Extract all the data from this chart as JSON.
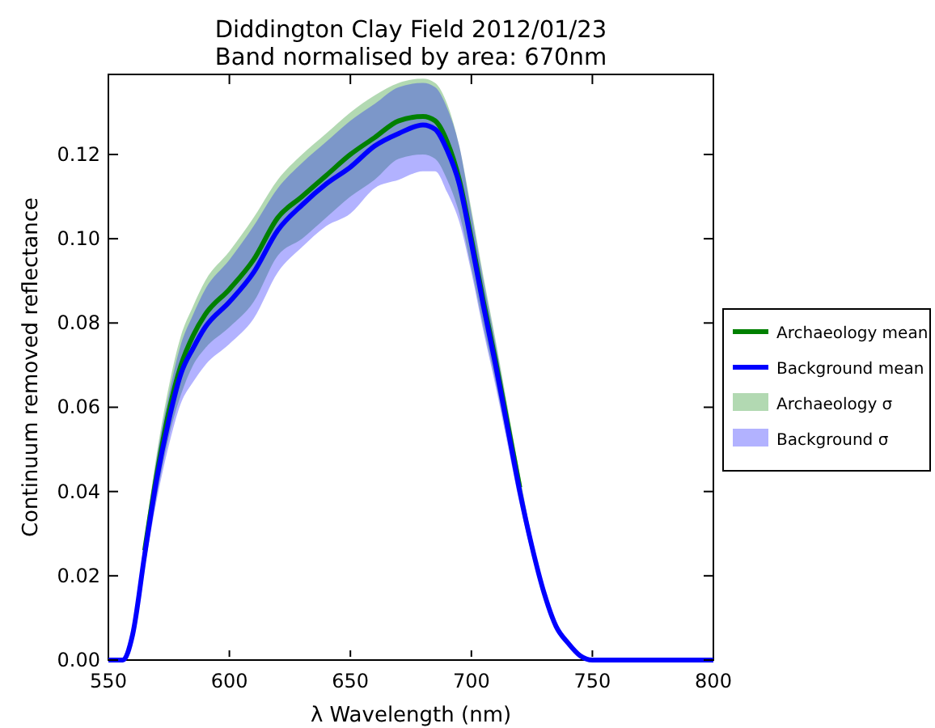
{
  "chart_data": {
    "type": "line",
    "title": "Diddington Clay Field 2012/01/23",
    "subtitle": "Band normalised by area: 670nm",
    "xlabel": "λ Wavelength (nm)",
    "ylabel": "Continuum removed reflectance",
    "x": [
      550,
      556,
      560,
      565,
      570,
      575,
      580,
      585,
      590,
      600,
      610,
      620,
      630,
      640,
      650,
      660,
      670,
      680,
      685,
      690,
      695,
      700,
      705,
      710,
      715,
      720,
      725,
      730,
      735,
      740,
      745,
      750,
      800
    ],
    "xlim": [
      550,
      800
    ],
    "xticks": [
      550,
      600,
      650,
      700,
      750,
      800
    ],
    "ylim": [
      0,
      0.139
    ],
    "yticks": [
      {
        "value": 0,
        "label": "0.00"
      },
      {
        "value": 0.02,
        "label": "0.02"
      },
      {
        "value": 0.04,
        "label": "0.04"
      },
      {
        "value": 0.06,
        "label": "0.06"
      },
      {
        "value": 0.08,
        "label": "0.08"
      },
      {
        "value": 0.1,
        "label": "0.10"
      },
      {
        "value": 0.12,
        "label": "0.12"
      }
    ],
    "legend": "right",
    "annotations": [
      "Archaeology σ",
      "Background σ"
    ],
    "series": [
      {
        "name": "Archaeology mean",
        "color": "#008000",
        "values": [
          0,
          0,
          null,
          0.026,
          0.044,
          0.059,
          0.07,
          0.077,
          0.082,
          0.088,
          0.095,
          0.105,
          0.11,
          0.115,
          0.12,
          0.124,
          0.128,
          0.129,
          0.128,
          0.123,
          0.114,
          0.1,
          0.085,
          0.071,
          0.056,
          0.041,
          null,
          null,
          null,
          null,
          null,
          null,
          null
        ],
        "lower": [
          0,
          0,
          0.005,
          0.023,
          0.039,
          0.053,
          0.063,
          0.07,
          0.074,
          0.079,
          0.085,
          0.096,
          0.1,
          0.105,
          0.11,
          0.114,
          0.119,
          0.12,
          0.119,
          0.114,
          0.106,
          0.093,
          0.079,
          0.066,
          0.052,
          0.038,
          0.025,
          0.015,
          0.007,
          0.004,
          0.001,
          0,
          0
        ],
        "upper": [
          0,
          0,
          0.007,
          0.029,
          0.049,
          0.065,
          0.077,
          0.084,
          0.09,
          0.097,
          0.105,
          0.114,
          0.12,
          0.125,
          0.13,
          0.134,
          0.137,
          0.138,
          0.137,
          0.132,
          0.122,
          0.107,
          0.091,
          0.076,
          0.06,
          0.044,
          0.029,
          0.017,
          0.009,
          0.004,
          0.001,
          0,
          0
        ]
      },
      {
        "name": "Background mean",
        "color": "#0000ff",
        "values": [
          0,
          0,
          0.006,
          0.025,
          0.043,
          0.057,
          0.068,
          0.074,
          0.079,
          0.085,
          0.092,
          0.102,
          0.108,
          0.113,
          0.117,
          0.122,
          0.125,
          0.127,
          0.126,
          0.121,
          0.113,
          0.099,
          0.084,
          0.07,
          0.055,
          0.04,
          0.027,
          0.016,
          0.008,
          0.004,
          0.001,
          0,
          0
        ],
        "lower": [
          0,
          0,
          0.005,
          0.022,
          0.038,
          0.051,
          0.061,
          0.066,
          0.07,
          0.075,
          0.081,
          0.092,
          0.098,
          0.103,
          0.106,
          0.112,
          0.114,
          0.116,
          0.116,
          0.111,
          0.104,
          0.092,
          0.078,
          0.065,
          0.051,
          0.037,
          0.025,
          0.015,
          0.007,
          0.004,
          0.001,
          0,
          0
        ],
        "upper": [
          0,
          0,
          0.007,
          0.028,
          0.048,
          0.063,
          0.075,
          0.082,
          0.088,
          0.095,
          0.103,
          0.112,
          0.118,
          0.123,
          0.128,
          0.132,
          0.136,
          0.137,
          0.136,
          0.131,
          0.122,
          0.106,
          0.09,
          0.075,
          0.059,
          0.043,
          0.029,
          0.017,
          0.009,
          0.004,
          0.001,
          0,
          0
        ]
      }
    ]
  }
}
